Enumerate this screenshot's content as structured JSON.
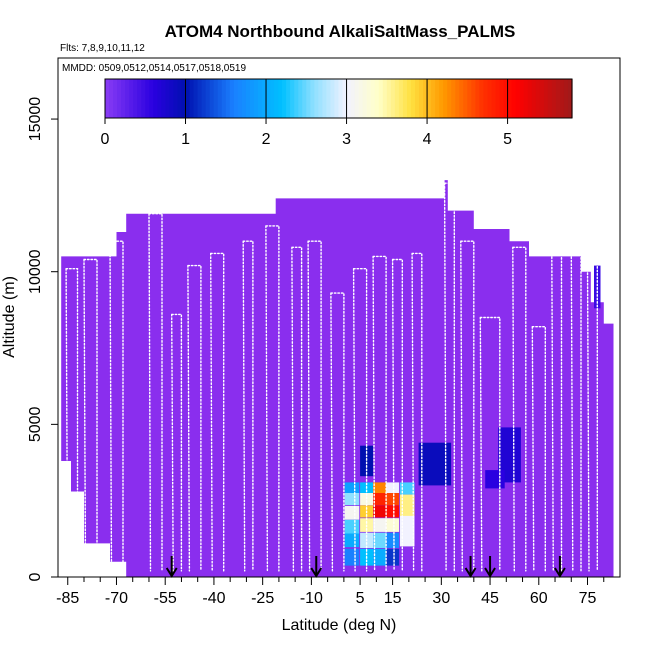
{
  "chart_data": {
    "type": "heatmap",
    "title": "ATOM4 Northbound AlkaliSaltMass_PALMS",
    "subtitle_flights": "Flts: 7,8,9,10,11,12",
    "subtitle_dates": "MMDD: 0509,0512,0514,0517,0518,0519",
    "xlabel": "Latitude (deg N)",
    "ylabel": "Altitude (m)",
    "xlim": [
      -88,
      85
    ],
    "ylim": [
      0,
      17000
    ],
    "x_ticks": [
      -85,
      -70,
      -55,
      -40,
      -25,
      -10,
      5,
      15,
      30,
      45,
      60,
      75
    ],
    "x_ticks_minor": [
      -80,
      -75,
      -65,
      -60,
      -50,
      -45,
      -35,
      -30,
      -20,
      -15,
      -5,
      0,
      10,
      20,
      25,
      35,
      40,
      50,
      55,
      65,
      70,
      80
    ],
    "y_ticks": [
      0,
      5000,
      10000,
      15000
    ],
    "colorbar": {
      "range": [
        0,
        5.8
      ],
      "ticks": [
        0,
        1,
        2,
        3,
        4,
        5
      ],
      "stops": [
        {
          "v": 0.0,
          "c": "#8a3cf5"
        },
        {
          "v": 0.6,
          "c": "#2a00e0"
        },
        {
          "v": 1.0,
          "c": "#0010b0"
        },
        {
          "v": 1.6,
          "c": "#1a80ff"
        },
        {
          "v": 2.2,
          "c": "#00c0ff"
        },
        {
          "v": 2.6,
          "c": "#90e0ff"
        },
        {
          "v": 3.0,
          "c": "#f2f2ff"
        },
        {
          "v": 3.4,
          "c": "#ffffc8"
        },
        {
          "v": 3.8,
          "c": "#ffe040"
        },
        {
          "v": 4.2,
          "c": "#ff9a00"
        },
        {
          "v": 4.7,
          "c": "#ff3000"
        },
        {
          "v": 5.1,
          "c": "#ff0000"
        },
        {
          "v": 5.8,
          "c": "#a01a1a"
        }
      ]
    },
    "background_value": 0,
    "background_color": "#8a2eee",
    "curtain_profile": [
      {
        "lat": -87,
        "top": 10500
      },
      {
        "lat": -70,
        "top": 10500
      },
      {
        "lat": -70,
        "top": 11300
      },
      {
        "lat": -67,
        "top": 11300
      },
      {
        "lat": -67,
        "top": 11900
      },
      {
        "lat": -21,
        "top": 11900
      },
      {
        "lat": -21,
        "top": 12400
      },
      {
        "lat": 31,
        "top": 12400
      },
      {
        "lat": 31,
        "top": 13000
      },
      {
        "lat": 32,
        "top": 13000
      },
      {
        "lat": 32,
        "top": 12000
      },
      {
        "lat": 40,
        "top": 12000
      },
      {
        "lat": 40,
        "top": 11400
      },
      {
        "lat": 51,
        "top": 11400
      },
      {
        "lat": 51,
        "top": 11000
      },
      {
        "lat": 57,
        "top": 11000
      },
      {
        "lat": 57,
        "top": 10500
      },
      {
        "lat": 73,
        "top": 10500
      },
      {
        "lat": 73,
        "top": 10000
      },
      {
        "lat": 76,
        "top": 10000
      },
      {
        "lat": 76,
        "top": 9000
      },
      {
        "lat": 80,
        "top": 9000
      },
      {
        "lat": 80,
        "top": 8300
      },
      {
        "lat": 83,
        "top": 8300
      },
      {
        "lat": 83,
        "top": 0
      }
    ],
    "curtain_bottom": [
      {
        "lat": -87,
        "bottom": 3800
      },
      {
        "lat": -84,
        "bottom": 3800
      },
      {
        "lat": -84,
        "bottom": 2800
      },
      {
        "lat": -80,
        "bottom": 2800
      },
      {
        "lat": -80,
        "bottom": 1100
      },
      {
        "lat": -72,
        "bottom": 1100
      },
      {
        "lat": -72,
        "bottom": 500
      },
      {
        "lat": -67,
        "bottom": 500
      },
      {
        "lat": -67,
        "bottom": 0
      }
    ],
    "cells": [
      {
        "lat": 2.5,
        "w": 4.5,
        "alt": 2925,
        "h": 350,
        "v": 1.9
      },
      {
        "lat": 2.5,
        "w": 4.5,
        "alt": 2550,
        "h": 400,
        "v": 2.6
      },
      {
        "lat": 2.5,
        "w": 4.5,
        "alt": 2100,
        "h": 450,
        "v": 3.1
      },
      {
        "lat": 2.5,
        "w": 4.5,
        "alt": 1650,
        "h": 450,
        "v": 2.4
      },
      {
        "lat": 2.5,
        "w": 4.5,
        "alt": 1200,
        "h": 450,
        "v": 2.0
      },
      {
        "lat": 2.5,
        "w": 4.5,
        "alt": 650,
        "h": 550,
        "v": 1.6
      },
      {
        "lat": 7,
        "w": 4,
        "alt": 3800,
        "h": 1000,
        "v": 1.0
      },
      {
        "lat": 7,
        "w": 4,
        "alt": 2925,
        "h": 350,
        "v": 2.2
      },
      {
        "lat": 7,
        "w": 4,
        "alt": 2550,
        "h": 400,
        "v": 3.2
      },
      {
        "lat": 7,
        "w": 4,
        "alt": 2150,
        "h": 400,
        "v": 3.9
      },
      {
        "lat": 7,
        "w": 4,
        "alt": 1700,
        "h": 450,
        "v": 3.5
      },
      {
        "lat": 7,
        "w": 4,
        "alt": 1200,
        "h": 500,
        "v": 2.8
      },
      {
        "lat": 7,
        "w": 4,
        "alt": 650,
        "h": 550,
        "v": 2.2
      },
      {
        "lat": 11,
        "w": 4,
        "alt": 2925,
        "h": 350,
        "v": 4.3
      },
      {
        "lat": 11,
        "w": 4,
        "alt": 2550,
        "h": 400,
        "v": 4.8
      },
      {
        "lat": 11,
        "w": 4,
        "alt": 2150,
        "h": 400,
        "v": 5.2
      },
      {
        "lat": 11,
        "w": 4,
        "alt": 1700,
        "h": 450,
        "v": 3.1
      },
      {
        "lat": 11,
        "w": 4,
        "alt": 1200,
        "h": 500,
        "v": 2.5
      },
      {
        "lat": 11,
        "w": 4,
        "alt": 650,
        "h": 550,
        "v": 2.0
      },
      {
        "lat": 15,
        "w": 4,
        "alt": 2925,
        "h": 350,
        "v": 3.0
      },
      {
        "lat": 15,
        "w": 4,
        "alt": 2550,
        "h": 400,
        "v": 4.6
      },
      {
        "lat": 15,
        "w": 4,
        "alt": 2150,
        "h": 400,
        "v": 5.0
      },
      {
        "lat": 15,
        "w": 4,
        "alt": 1700,
        "h": 450,
        "v": 3.3
      },
      {
        "lat": 15,
        "w": 4,
        "alt": 1200,
        "h": 500,
        "v": 1.7
      },
      {
        "lat": 15,
        "w": 4,
        "alt": 650,
        "h": 550,
        "v": 1.2
      },
      {
        "lat": 19.5,
        "w": 4.5,
        "alt": 2900,
        "h": 400,
        "v": 2.4
      },
      {
        "lat": 19.5,
        "w": 4.5,
        "alt": 2350,
        "h": 700,
        "v": 3.6
      },
      {
        "lat": 19.5,
        "w": 4.5,
        "alt": 1500,
        "h": 1000,
        "v": 3.0
      },
      {
        "lat": 28,
        "w": 10,
        "alt": 3700,
        "h": 1400,
        "v": 0.9
      },
      {
        "lat": 51,
        "w": 7,
        "alt": 4000,
        "h": 1800,
        "v": 0.7
      },
      {
        "lat": 46.5,
        "w": 6,
        "alt": 3200,
        "h": 600,
        "v": 0.6
      },
      {
        "lat": 78,
        "w": 2,
        "alt": 9500,
        "h": 1400,
        "v": 0.5
      }
    ],
    "arrows_lat": [
      -53,
      -8.5,
      39,
      45,
      66.5
    ],
    "flight_tracks": [
      {
        "lat0": -85.5,
        "lat1": -82,
        "top": 10100
      },
      {
        "lat0": -80,
        "lat1": -76,
        "top": 10400
      },
      {
        "lat0": -72,
        "lat1": -68,
        "top": 11000
      },
      {
        "lat0": -60,
        "lat1": -56,
        "top": 11900
      },
      {
        "lat0": -53,
        "lat1": -50,
        "top": 8600
      },
      {
        "lat0": -48,
        "lat1": -44,
        "top": 10200
      },
      {
        "lat0": -41,
        "lat1": -37,
        "top": 10600
      },
      {
        "lat0": -31,
        "lat1": -28,
        "top": 11000
      },
      {
        "lat0": -24,
        "lat1": -20,
        "top": 11500
      },
      {
        "lat0": -16,
        "lat1": -13,
        "top": 10800
      },
      {
        "lat0": -11,
        "lat1": -7,
        "top": 11000
      },
      {
        "lat0": -4,
        "lat1": 0,
        "top": 9300
      },
      {
        "lat0": 3,
        "lat1": 7,
        "top": 10100
      },
      {
        "lat0": 9,
        "lat1": 13,
        "top": 10500
      },
      {
        "lat0": 15,
        "lat1": 18,
        "top": 10400
      },
      {
        "lat0": 21,
        "lat1": 24,
        "top": 10600
      },
      {
        "lat0": 31,
        "lat1": 34,
        "top": 12900
      },
      {
        "lat0": 36,
        "lat1": 40,
        "top": 11000
      },
      {
        "lat0": 42,
        "lat1": 48,
        "top": 8500
      },
      {
        "lat0": 52,
        "lat1": 56,
        "top": 10800
      },
      {
        "lat0": 58,
        "lat1": 62,
        "top": 8200
      },
      {
        "lat0": 64,
        "lat1": 67,
        "top": 10600
      },
      {
        "lat0": 70,
        "lat1": 73,
        "top": 10600
      },
      {
        "lat0": 75,
        "lat1": 78,
        "top": 10300
      }
    ]
  }
}
